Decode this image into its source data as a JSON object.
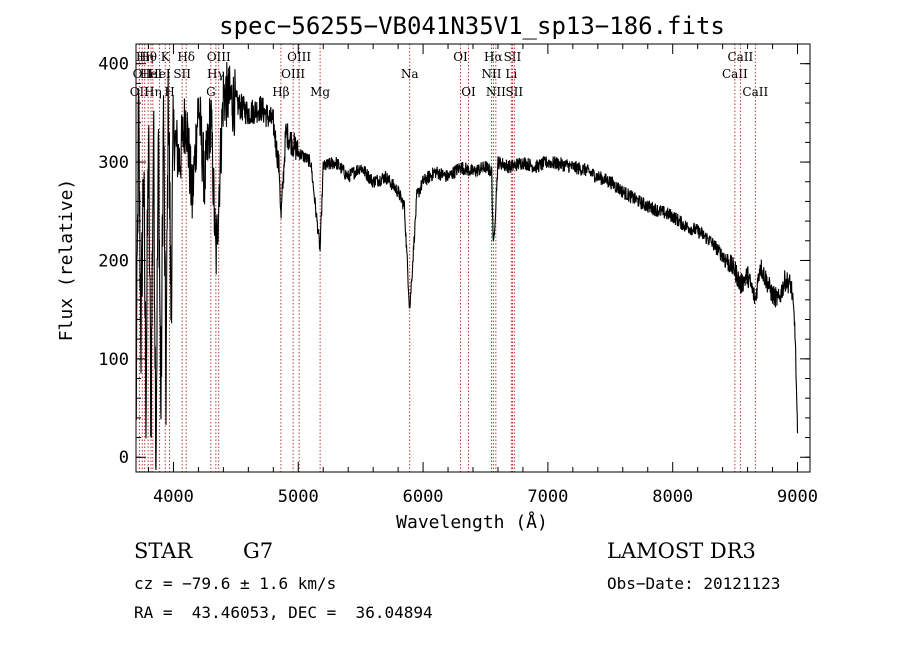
{
  "chart_data": {
    "type": "line",
    "title": "spec−56255−VB041N35V1_sp13−186.fits",
    "xlabel": "Wavelength (Å)",
    "ylabel": "Flux (relative)",
    "xlim": [
      3700,
      9100
    ],
    "ylim": [
      -15,
      420
    ],
    "x_ticks": [
      4000,
      5000,
      6000,
      7000,
      8000,
      9000
    ],
    "y_ticks": [
      0,
      100,
      200,
      300,
      400
    ],
    "x_ticks_minor": [
      3800,
      4200,
      4400,
      4600,
      4800,
      5200,
      5400,
      5600,
      5800,
      6200,
      6400,
      6600,
      6800,
      7200,
      7400,
      7600,
      7800,
      8200,
      8400,
      8600,
      8800,
      9000
    ],
    "series": [
      {
        "name": "flux",
        "x": [
          3700,
          3720,
          3740,
          3760,
          3780,
          3800,
          3820,
          3840,
          3860,
          3880,
          3900,
          3920,
          3940,
          3960,
          3980,
          4000,
          4050,
          4100,
          4150,
          4200,
          4250,
          4300,
          4340,
          4400,
          4500,
          4600,
          4700,
          4800,
          4850,
          4861,
          4900,
          5000,
          5100,
          5175,
          5200,
          5300,
          5400,
          5500,
          5600,
          5700,
          5800,
          5850,
          5893,
          5950,
          6000,
          6100,
          6200,
          6300,
          6400,
          6500,
          6550,
          6563,
          6600,
          6700,
          6800,
          6900,
          7000,
          7100,
          7200,
          7300,
          7400,
          7500,
          7600,
          7700,
          7800,
          7900,
          8000,
          8100,
          8200,
          8300,
          8400,
          8500,
          8542,
          8600,
          8662,
          8700,
          8800,
          8850,
          8900,
          8950,
          8980,
          9000
        ],
        "values": [
          20,
          350,
          120,
          300,
          60,
          330,
          30,
          340,
          10,
          320,
          40,
          350,
          70,
          380,
          150,
          330,
          300,
          350,
          260,
          360,
          280,
          350,
          200,
          370,
          360,
          350,
          355,
          340,
          290,
          240,
          330,
          310,
          300,
          210,
          295,
          300,
          285,
          295,
          280,
          285,
          270,
          255,
          150,
          265,
          280,
          290,
          285,
          295,
          290,
          295,
          290,
          210,
          300,
          295,
          300,
          295,
          300,
          298,
          295,
          292,
          285,
          280,
          270,
          262,
          255,
          250,
          245,
          235,
          230,
          220,
          205,
          190,
          175,
          185,
          160,
          195,
          165,
          160,
          180,
          175,
          130,
          20
        ]
      }
    ],
    "lines": [
      {
        "wl": 3727,
        "label": "OII",
        "row": 3
      },
      {
        "wl": 3750,
        "label": "OII",
        "row": 2
      },
      {
        "wl": 3770,
        "label": "Hη",
        "row": 1
      },
      {
        "wl": 3797,
        "label": "Hθ",
        "row": 1
      },
      {
        "wl": 3820,
        "label": "HeI",
        "row": 2
      },
      {
        "wl": 3835,
        "label": "Hη",
        "row": 3
      },
      {
        "wl": 3889,
        "label": "HeI",
        "row": 2
      },
      {
        "wl": 3934,
        "label": "K",
        "row": 1
      },
      {
        "wl": 3969,
        "label": "H",
        "row": 3
      },
      {
        "wl": 4070,
        "label": "SII",
        "row": 2
      },
      {
        "wl": 4102,
        "label": "Hδ",
        "row": 1
      },
      {
        "wl": 4300,
        "label": "G",
        "row": 3
      },
      {
        "wl": 4340,
        "label": "Hγ",
        "row": 2
      },
      {
        "wl": 4363,
        "label": "OIII",
        "row": 1
      },
      {
        "wl": 4861,
        "label": "Hβ",
        "row": 3
      },
      {
        "wl": 4959,
        "label": "OIII",
        "row": 2
      },
      {
        "wl": 5007,
        "label": "OIII",
        "row": 1
      },
      {
        "wl": 5175,
        "label": "Mg",
        "row": 3
      },
      {
        "wl": 5893,
        "label": "Na",
        "row": 2
      },
      {
        "wl": 6300,
        "label": "OI",
        "row": 1
      },
      {
        "wl": 6364,
        "label": "OI",
        "row": 3
      },
      {
        "wl": 6548,
        "label": "NII",
        "row": 2
      },
      {
        "wl": 6563,
        "label": "Hα",
        "row": 1
      },
      {
        "wl": 6583,
        "label": "NII",
        "row": 3
      },
      {
        "wl": 6707,
        "label": "Li",
        "row": 2
      },
      {
        "wl": 6716,
        "label": "SII",
        "row": 1
      },
      {
        "wl": 6731,
        "label": "SII",
        "row": 3
      },
      {
        "wl": 8498,
        "label": "CaII",
        "row": 2
      },
      {
        "wl": 8542,
        "label": "CaII",
        "row": 1
      },
      {
        "wl": 8662,
        "label": "CaII",
        "row": 3
      }
    ]
  },
  "info": {
    "object_class": "STAR",
    "subclass": "G7",
    "cz": "cz = −79.6 ± 1.6 km/s",
    "coords": "RA =  43.46053, DEC =  36.04894",
    "survey": "LAMOST DR3",
    "obs_date": "Obs−Date: 20121123"
  }
}
